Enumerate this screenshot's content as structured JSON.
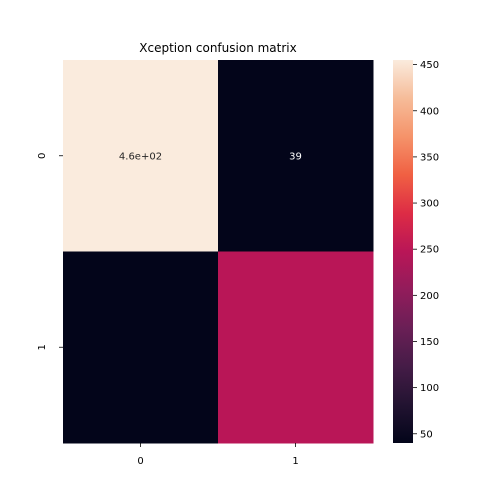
{
  "chart_data": {
    "type": "heatmap",
    "title": "Xception confusion matrix",
    "xlabel": "",
    "ylabel": "",
    "x_categories": [
      "0",
      "1"
    ],
    "y_categories": [
      "0",
      "1"
    ],
    "matrix": [
      [
        455,
        39
      ],
      [
        40,
        248
      ]
    ],
    "annotations": [
      [
        "4.6e+02",
        "39"
      ],
      [
        "",
        ""
      ]
    ],
    "colorbar": {
      "min": 40,
      "max": 455,
      "ticks": [
        50,
        100,
        150,
        200,
        250,
        300,
        350,
        400,
        450
      ],
      "tick_labels": [
        "50",
        "100",
        "150",
        "200",
        "250",
        "300",
        "350",
        "400",
        "450"
      ],
      "colormap": "rocket"
    },
    "annotation_colors": {
      "on_light": "#262626",
      "on_dark": "#ffffff"
    }
  }
}
